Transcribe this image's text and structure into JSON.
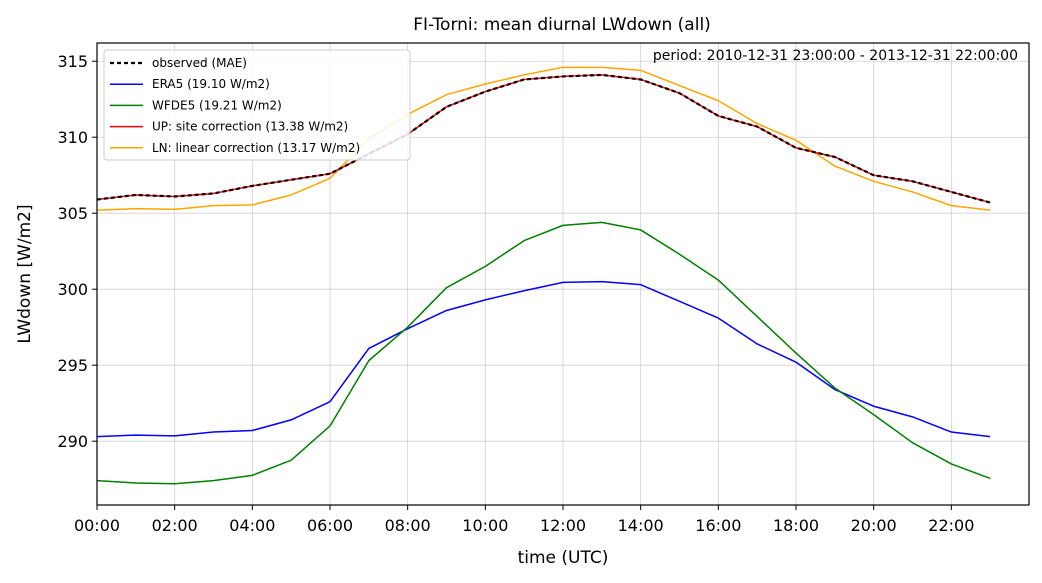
{
  "chart_data": {
    "type": "line",
    "title": "FI-Torni: mean diurnal LWdown (all)",
    "xlabel": "time (UTC)",
    "ylabel": "LWdown [W/m2]",
    "annotation": "period: 2010-12-31 23:00:00 - 2013-12-31 22:00:00",
    "xlim": [
      0,
      24
    ],
    "ylim": [
      285.8,
      316.2
    ],
    "grid": true,
    "legend_position": "top-left",
    "x_ticks": [
      0,
      2,
      4,
      6,
      8,
      10,
      12,
      14,
      16,
      18,
      20,
      22
    ],
    "x_tick_labels": [
      "00:00",
      "02:00",
      "04:00",
      "06:00",
      "08:00",
      "10:00",
      "12:00",
      "14:00",
      "16:00",
      "18:00",
      "20:00",
      "22:00"
    ],
    "y_ticks": [
      290,
      295,
      300,
      305,
      310,
      315
    ],
    "y_tick_labels": [
      "290",
      "295",
      "300",
      "305",
      "310",
      "315"
    ],
    "x": [
      0,
      1,
      2,
      3,
      4,
      5,
      6,
      7,
      8,
      9,
      10,
      11,
      12,
      13,
      14,
      15,
      16,
      17,
      18,
      19,
      20,
      21,
      22,
      23
    ],
    "series": [
      {
        "name": "observed (MAE)",
        "color": "#000000",
        "dashed": true,
        "values": [
          305.9,
          306.2,
          306.1,
          306.3,
          306.8,
          307.2,
          307.6,
          308.9,
          310.2,
          312.0,
          313.0,
          313.8,
          314.0,
          314.1,
          313.8,
          312.9,
          311.4,
          310.7,
          309.3,
          308.7,
          307.5,
          307.1,
          306.4,
          305.7
        ]
      },
      {
        "name": "ERA5 (19.10 W/m2)",
        "color": "#0000ff",
        "dashed": false,
        "values": [
          290.3,
          290.4,
          290.35,
          290.6,
          290.7,
          291.4,
          292.6,
          296.1,
          297.4,
          298.6,
          299.3,
          299.9,
          300.45,
          300.5,
          300.3,
          299.2,
          298.1,
          296.4,
          295.2,
          293.4,
          292.3,
          291.6,
          290.6,
          290.3
        ]
      },
      {
        "name": "WFDE5 (19.21 W/m2)",
        "color": "#008000",
        "dashed": false,
        "values": [
          287.4,
          287.25,
          287.2,
          287.4,
          287.75,
          288.75,
          291.0,
          295.3,
          297.5,
          300.1,
          301.5,
          303.2,
          304.2,
          304.4,
          303.9,
          302.3,
          300.6,
          298.2,
          295.8,
          293.5,
          291.75,
          289.9,
          288.5,
          287.55
        ]
      },
      {
        "name": "UP: site correction (13.38 W/m2)",
        "color": "#ff0000",
        "dashed": false,
        "values": [
          305.9,
          306.2,
          306.1,
          306.3,
          306.8,
          307.2,
          307.6,
          308.9,
          310.2,
          312.0,
          313.0,
          313.8,
          314.0,
          314.1,
          313.8,
          312.9,
          311.4,
          310.7,
          309.3,
          308.7,
          307.5,
          307.1,
          306.4,
          305.7
        ]
      },
      {
        "name": "LN: linear correction (13.17 W/m2)",
        "color": "#ffa500",
        "dashed": false,
        "values": [
          305.2,
          305.3,
          305.25,
          305.5,
          305.55,
          306.2,
          307.3,
          309.9,
          311.5,
          312.8,
          313.5,
          314.1,
          314.6,
          314.6,
          314.4,
          313.4,
          312.4,
          310.9,
          309.8,
          308.1,
          307.1,
          306.4,
          305.5,
          305.2
        ]
      }
    ]
  }
}
